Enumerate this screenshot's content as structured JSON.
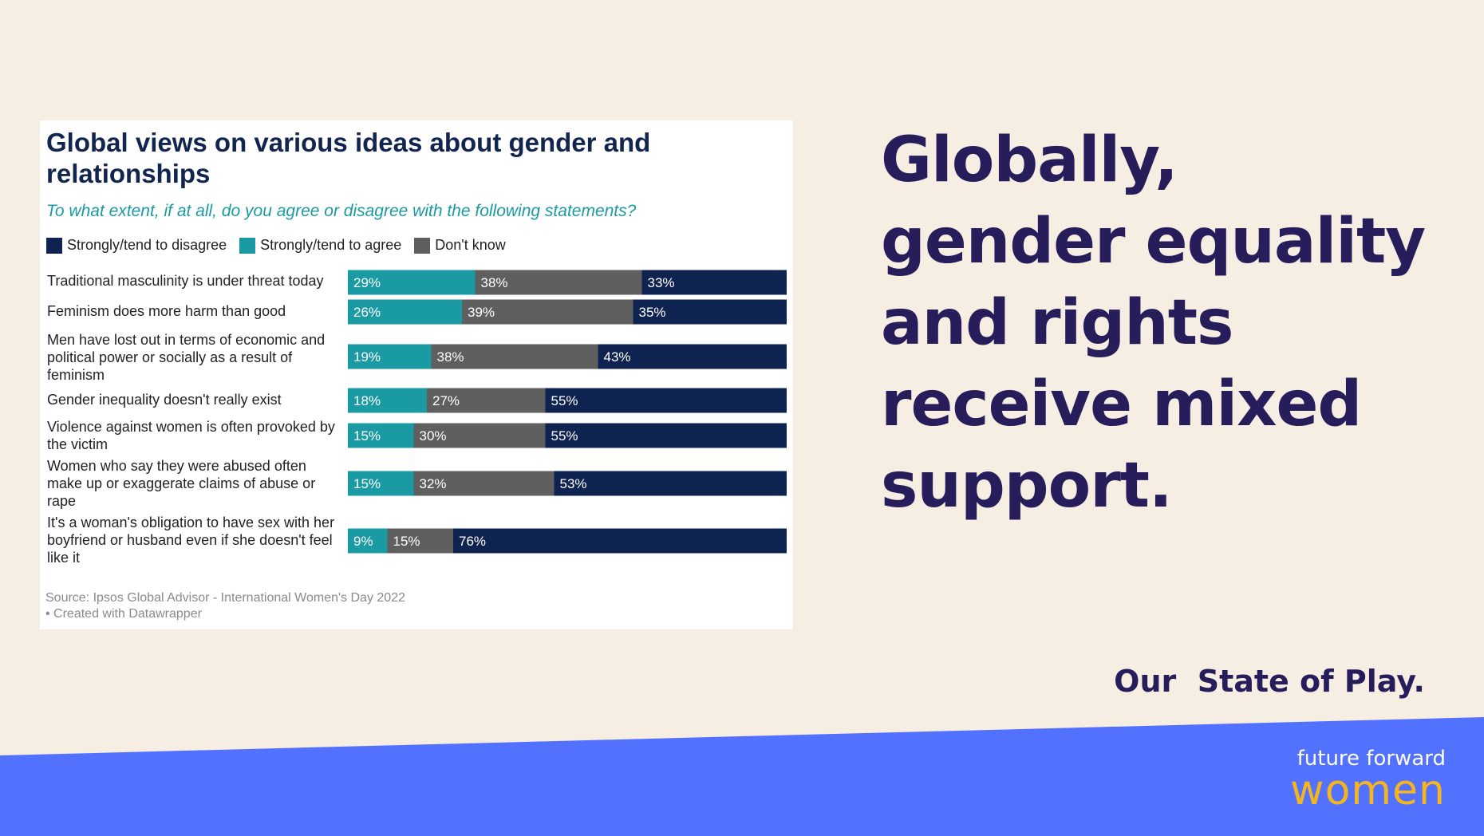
{
  "headline": "Globally, gender equality and rights receive mixed support.",
  "tagline": "Our  State of Play.",
  "logo": {
    "line1": "future forward",
    "line2": "women"
  },
  "colors": {
    "background": "#f6ede3",
    "band": "#5271ff",
    "disagree": "#0f2350",
    "agree": "#1a9aa3",
    "dont_know": "#5f5f5f",
    "headline": "#261d5a",
    "logo_accent": "#f4b51f"
  },
  "chart_data": {
    "type": "bar",
    "orientation": "horizontal",
    "stacked": true,
    "title": "Global views on various ideas about gender and relationships",
    "subtitle": "To what extent, if at all, do you agree or disagree with the following statements?",
    "legend": [
      {
        "name": "Strongly/tend to disagree",
        "color": "#0f2350"
      },
      {
        "name": "Strongly/tend to agree",
        "color": "#1a9aa3"
      },
      {
        "name": "Don't know",
        "color": "#5f5f5f"
      }
    ],
    "legend_placement": "top-left",
    "categories": [
      "Traditional masculinity is under threat today",
      "Feminism does more harm than good",
      "Men have lost out in terms of economic and political power or socially as a result of feminism",
      "Gender inequality doesn't really exist",
      "Violence against women is often provoked by the victim",
      "Women who say they were abused often make up or exaggerate claims of abuse or rape",
      "It's a woman's obligation to have sex with her boyfriend or husband even if she doesn't feel like it"
    ],
    "series": [
      {
        "name": "Strongly/tend to agree",
        "color": "#1a9aa3",
        "values": [
          29,
          26,
          19,
          18,
          15,
          15,
          9
        ]
      },
      {
        "name": "Don't know",
        "color": "#5f5f5f",
        "values": [
          38,
          39,
          38,
          27,
          30,
          32,
          15
        ]
      },
      {
        "name": "Strongly/tend to disagree",
        "color": "#0f2350",
        "values": [
          33,
          35,
          43,
          55,
          55,
          53,
          76
        ]
      }
    ],
    "value_suffix": "%",
    "grid": false,
    "source": "Source: Ipsos Global Advisor - International Women's Day 2022",
    "credit": "• Created with Datawrapper"
  }
}
